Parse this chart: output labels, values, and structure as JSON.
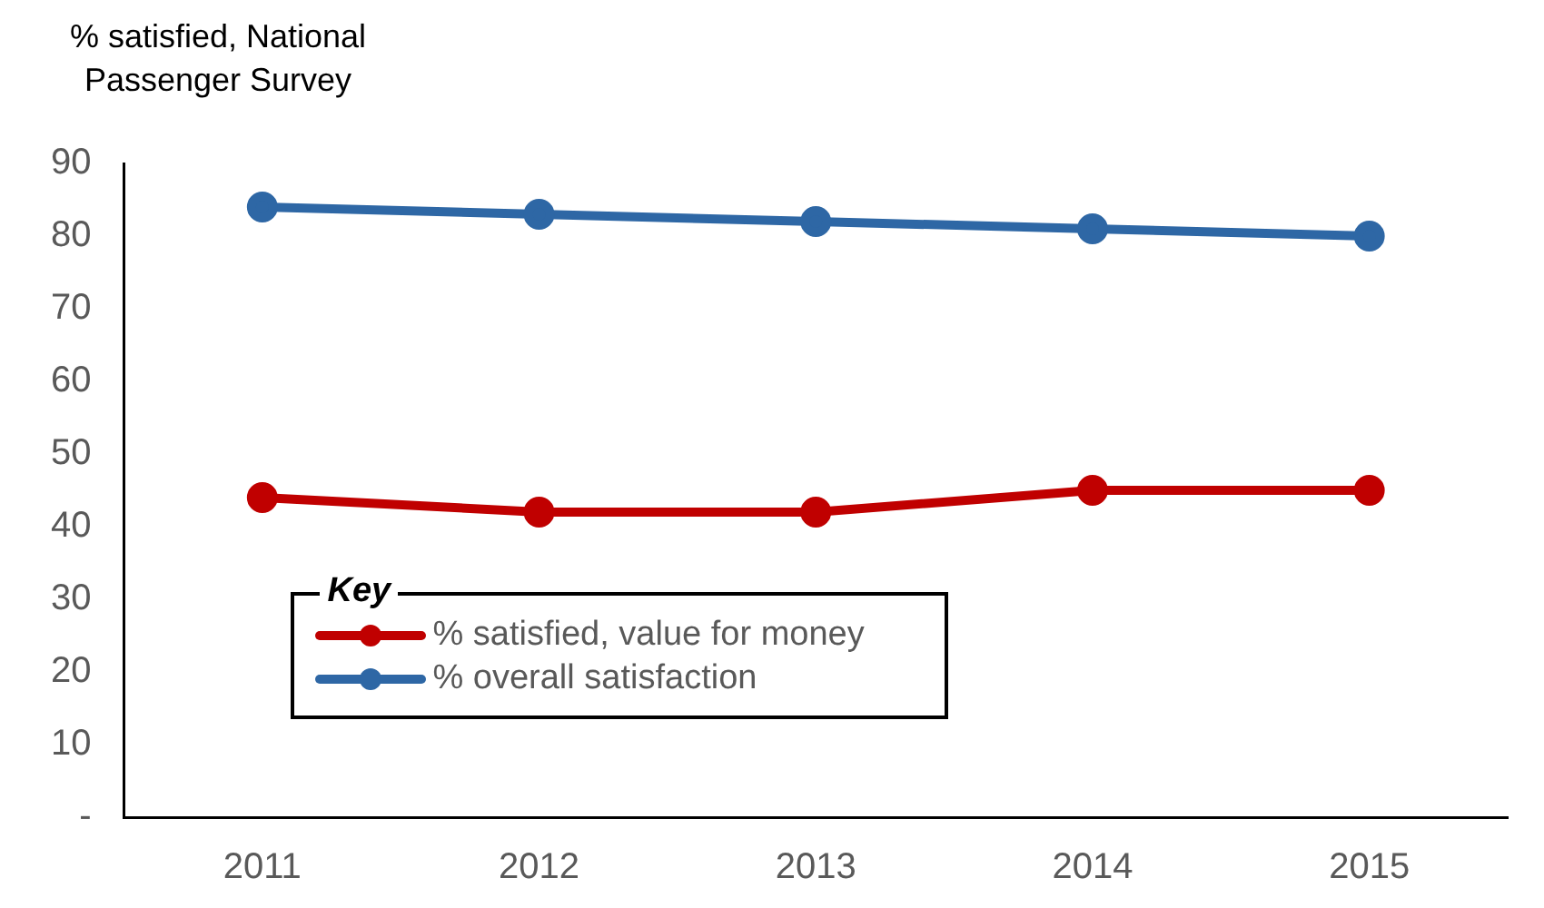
{
  "chart_data": {
    "type": "line",
    "ylabel": "% satisfied, National Passenger Survey",
    "legend_title": "Key",
    "categories": [
      "2011",
      "2012",
      "2013",
      "2014",
      "2015"
    ],
    "series": [
      {
        "name": "% satisfied, value for money",
        "color": "#c00000",
        "values": [
          44,
          42,
          42,
          45,
          45
        ]
      },
      {
        "name": "% overall satisfaction",
        "color": "#2e67a5",
        "values": [
          84,
          83,
          82,
          81,
          80
        ]
      }
    ],
    "ylim": [
      0,
      90
    ],
    "yticks": [
      {
        "value": 0,
        "label": "-"
      },
      10,
      20,
      30,
      40,
      50,
      60,
      70,
      80,
      90
    ],
    "grid": false,
    "legend": "bottom left",
    "marker": "circle",
    "line_style": "solid"
  }
}
